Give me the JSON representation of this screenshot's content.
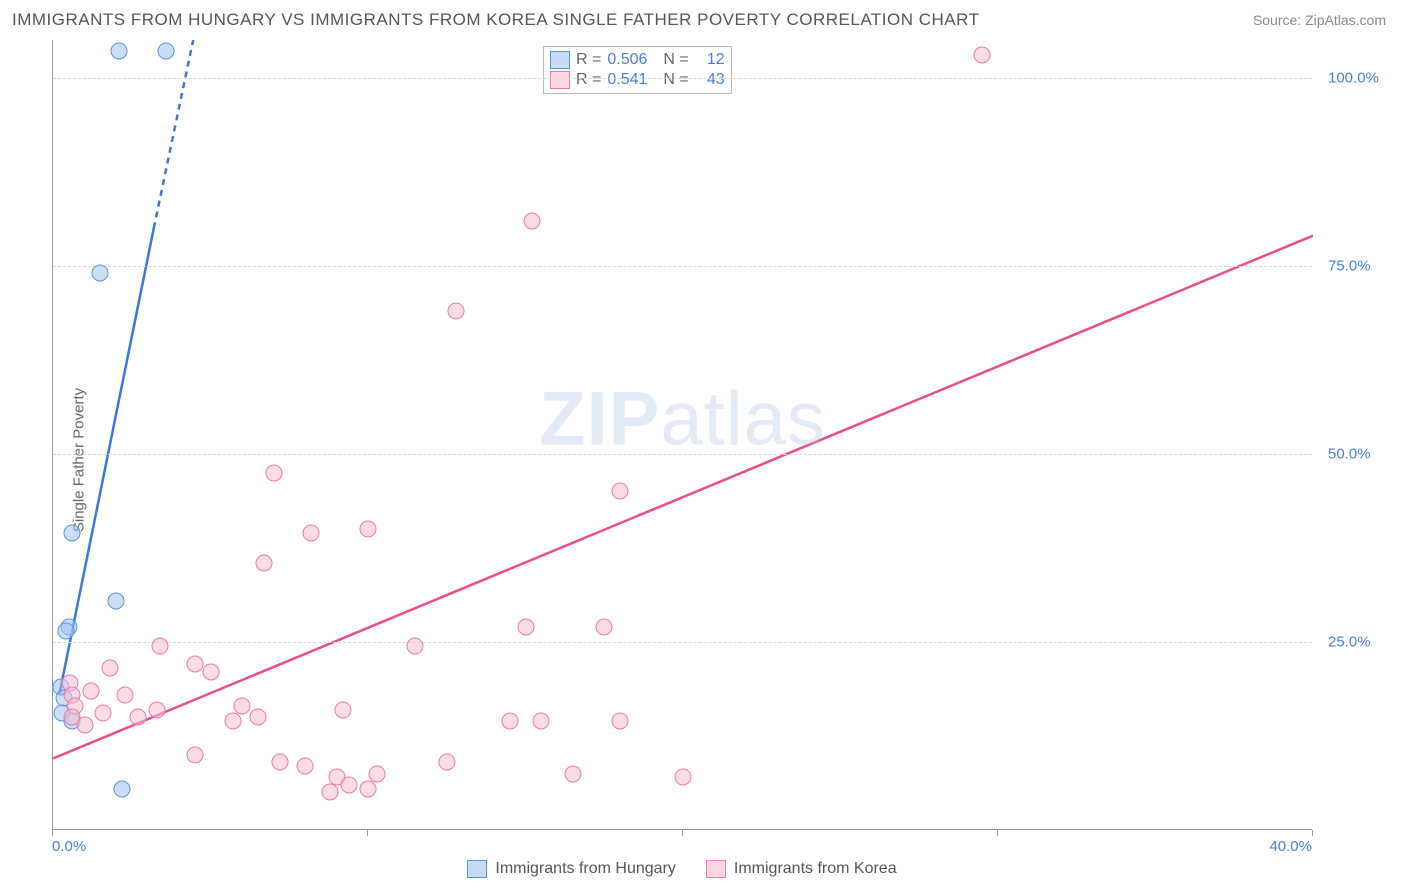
{
  "title": "IMMIGRANTS FROM HUNGARY VS IMMIGRANTS FROM KOREA SINGLE FATHER POVERTY CORRELATION CHART",
  "source": "Source: ZipAtlas.com",
  "ylabel": "Single Father Poverty",
  "watermark_a": "ZIP",
  "watermark_b": "atlas",
  "chart": {
    "type": "scatter",
    "xlim": [
      0,
      40
    ],
    "ylim": [
      0,
      105
    ],
    "xtick_step": 10,
    "yticks": [
      25,
      50,
      75,
      100
    ],
    "xtick_labels": [
      "0.0%",
      "10.0%",
      "20.0%",
      "30.0%",
      "40.0%"
    ],
    "ytick_labels": [
      "25.0%",
      "50.0%",
      "75.0%",
      "100.0%"
    ],
    "grid_color": "#d8d8d8",
    "axis_color": "#999999",
    "tick_color": "#4a7fd8",
    "background_color": "#ffffff",
    "series": [
      {
        "name": "Immigrants from Hungary",
        "marker_color": "rgba(160,195,240,0.55)",
        "marker_border": "#5a94d8",
        "line_color": "#3b78d6",
        "line_dash_color": "#3b78d6",
        "R": "0.506",
        "N": "12",
        "trend": {
          "x1": 0.2,
          "y1": 18,
          "x2": 3.2,
          "y2": 80,
          "dash_x2": 4.7,
          "dash_y2": 110
        },
        "points": [
          [
            2.1,
            103.5
          ],
          [
            3.6,
            103.5
          ],
          [
            1.5,
            74
          ],
          [
            0.6,
            39.5
          ],
          [
            2.0,
            30.5
          ],
          [
            0.5,
            27
          ],
          [
            0.4,
            26.5
          ],
          [
            0.25,
            19
          ],
          [
            0.35,
            17.5
          ],
          [
            0.3,
            15.5
          ],
          [
            0.6,
            14.5
          ],
          [
            2.2,
            5.5
          ]
        ]
      },
      {
        "name": "Immigrants from Korea",
        "marker_color": "rgba(248,190,210,0.55)",
        "marker_border": "#e87ba8",
        "line_color": "#ea4d89",
        "R": "0.541",
        "N": "43",
        "trend": {
          "x1": 0,
          "y1": 9.5,
          "x2": 40,
          "y2": 79
        },
        "points": [
          [
            29.5,
            103
          ],
          [
            15.2,
            81
          ],
          [
            12.8,
            69
          ],
          [
            7.0,
            47.5
          ],
          [
            18.0,
            45
          ],
          [
            10.0,
            40
          ],
          [
            8.2,
            39.5
          ],
          [
            6.7,
            35.5
          ],
          [
            15.0,
            27
          ],
          [
            17.5,
            27
          ],
          [
            11.5,
            24.5
          ],
          [
            3.4,
            24.5
          ],
          [
            1.8,
            21.5
          ],
          [
            4.5,
            22
          ],
          [
            5.0,
            21
          ],
          [
            0.55,
            19.5
          ],
          [
            0.6,
            18
          ],
          [
            1.2,
            18.5
          ],
          [
            2.3,
            18
          ],
          [
            0.7,
            16.5
          ],
          [
            0.6,
            15
          ],
          [
            1.6,
            15.5
          ],
          [
            2.7,
            15
          ],
          [
            3.3,
            16
          ],
          [
            6.0,
            16.5
          ],
          [
            5.7,
            14.5
          ],
          [
            9.2,
            16
          ],
          [
            14.5,
            14.5
          ],
          [
            15.5,
            14.5
          ],
          [
            18.0,
            14.5
          ],
          [
            20.0,
            7
          ],
          [
            16.5,
            7.5
          ],
          [
            4.5,
            10
          ],
          [
            7.2,
            9
          ],
          [
            8.0,
            8.5
          ],
          [
            9.0,
            7
          ],
          [
            9.4,
            6
          ],
          [
            10.0,
            5.5
          ],
          [
            10.3,
            7.5
          ],
          [
            12.5,
            9
          ],
          [
            8.8,
            5
          ],
          [
            6.5,
            15
          ],
          [
            1.0,
            14
          ]
        ]
      }
    ]
  },
  "stats_labels": {
    "R": "R =",
    "N": "N ="
  },
  "legend": [
    {
      "swatch": "sw-blue",
      "label": "Immigrants from Hungary"
    },
    {
      "swatch": "sw-pink",
      "label": "Immigrants from Korea"
    }
  ]
}
